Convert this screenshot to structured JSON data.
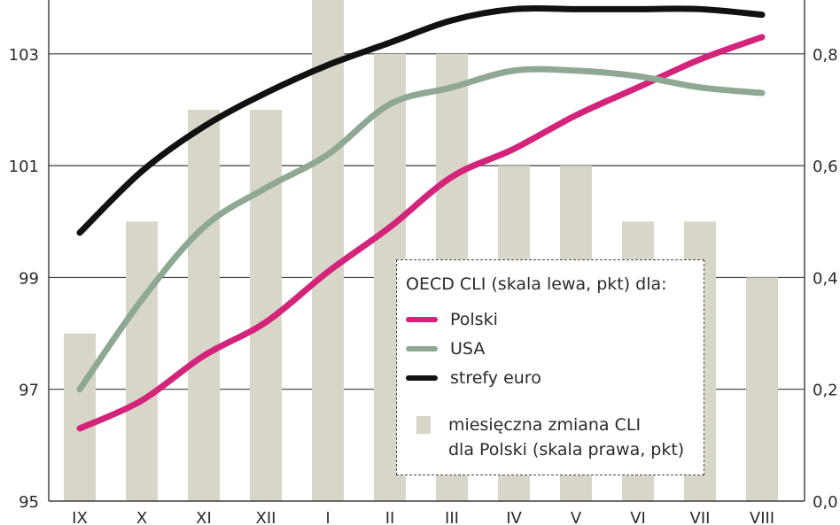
{
  "chart_data": {
    "type": "line+bar",
    "categories": [
      "IX",
      "X",
      "XI",
      "XII",
      "I",
      "II",
      "III",
      "IV",
      "V",
      "VI",
      "VII",
      "VIII"
    ],
    "left_axis": {
      "ticks": [
        "95",
        "97",
        "99",
        "101",
        "103"
      ],
      "ylim": [
        95,
        103.9
      ]
    },
    "right_axis": {
      "ticks": [
        "0,0",
        "0,2",
        "0,4",
        "0,6",
        "0,8"
      ],
      "ylim": [
        0.0,
        0.89
      ]
    },
    "series": [
      {
        "name": "Polski",
        "axis": "left",
        "color": "#d4237a",
        "values": [
          96.3,
          96.8,
          97.6,
          98.2,
          99.1,
          99.9,
          100.8,
          101.3,
          101.9,
          102.4,
          102.9,
          103.3
        ]
      },
      {
        "name": "USA",
        "axis": "left",
        "color": "#8fa893",
        "values": [
          97.0,
          98.6,
          99.9,
          100.6,
          101.2,
          102.1,
          102.4,
          102.7,
          102.7,
          102.6,
          102.4,
          102.3
        ]
      },
      {
        "name": "strefy euro",
        "axis": "left",
        "color": "#111111",
        "values": [
          99.8,
          100.9,
          101.7,
          102.3,
          102.8,
          103.2,
          103.6,
          103.8,
          103.8,
          103.8,
          103.8,
          103.7
        ]
      }
    ],
    "bars": {
      "name": "miesięczna zmiana CLI dla Polski (skala prawa, pkt)",
      "axis": "right",
      "color": "#d8d6c8",
      "values": [
        0.3,
        0.5,
        0.7,
        0.7,
        0.9,
        0.8,
        0.8,
        0.6,
        0.6,
        0.5,
        0.5,
        0.4
      ]
    },
    "grid": true,
    "legend": {
      "title": "OECD CLI (skala lewa, pkt) dla:",
      "items": [
        "Polski",
        "USA",
        "strefy euro"
      ],
      "bar_label_line1": "miesięczna zmiana CLI",
      "bar_label_line2": "dla Polski (skala prawa, pkt)",
      "placement": "bottom-right"
    }
  }
}
